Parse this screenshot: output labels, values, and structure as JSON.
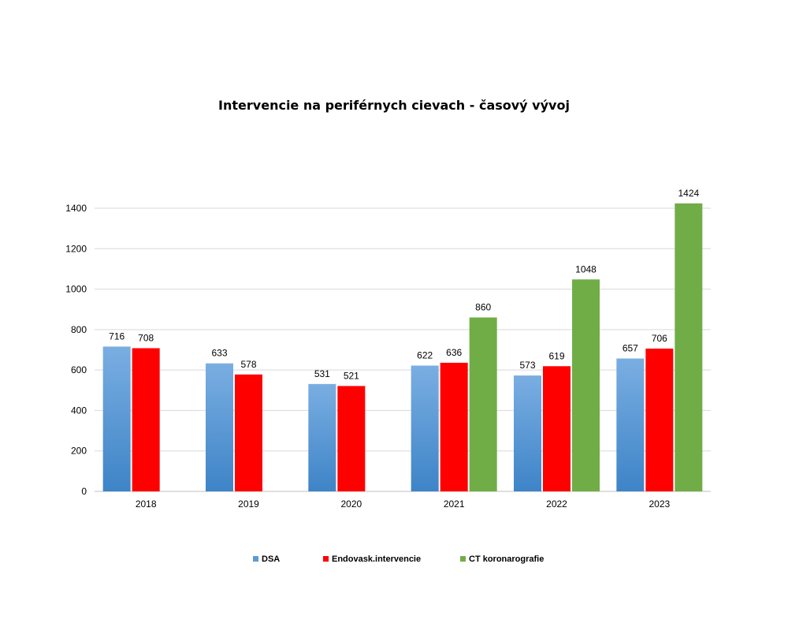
{
  "chart_data": {
    "type": "bar",
    "title": "Intervencie na periférnych cievach - časový vývoj",
    "xlabel": "",
    "ylabel": "",
    "categories": [
      "2018",
      "2019",
      "2020",
      "2021",
      "2022",
      "2023"
    ],
    "series": [
      {
        "name": "DSA",
        "values": [
          716,
          633,
          531,
          622,
          573,
          657
        ],
        "color": "#5b9bd5"
      },
      {
        "name": "Endovask.intervencie",
        "values": [
          708,
          578,
          521,
          636,
          619,
          706
        ],
        "color": "#ff0000"
      },
      {
        "name": "CT koronarografie",
        "values": [
          null,
          null,
          null,
          860,
          1048,
          1424
        ],
        "color": "#70ad47"
      }
    ],
    "ylim": [
      0,
      1400
    ],
    "yticks": [
      "0",
      "200",
      "400",
      "600",
      "800",
      "1000",
      "1200",
      "1400"
    ],
    "grid": true,
    "legend_position": "bottom",
    "data_labels": true
  }
}
